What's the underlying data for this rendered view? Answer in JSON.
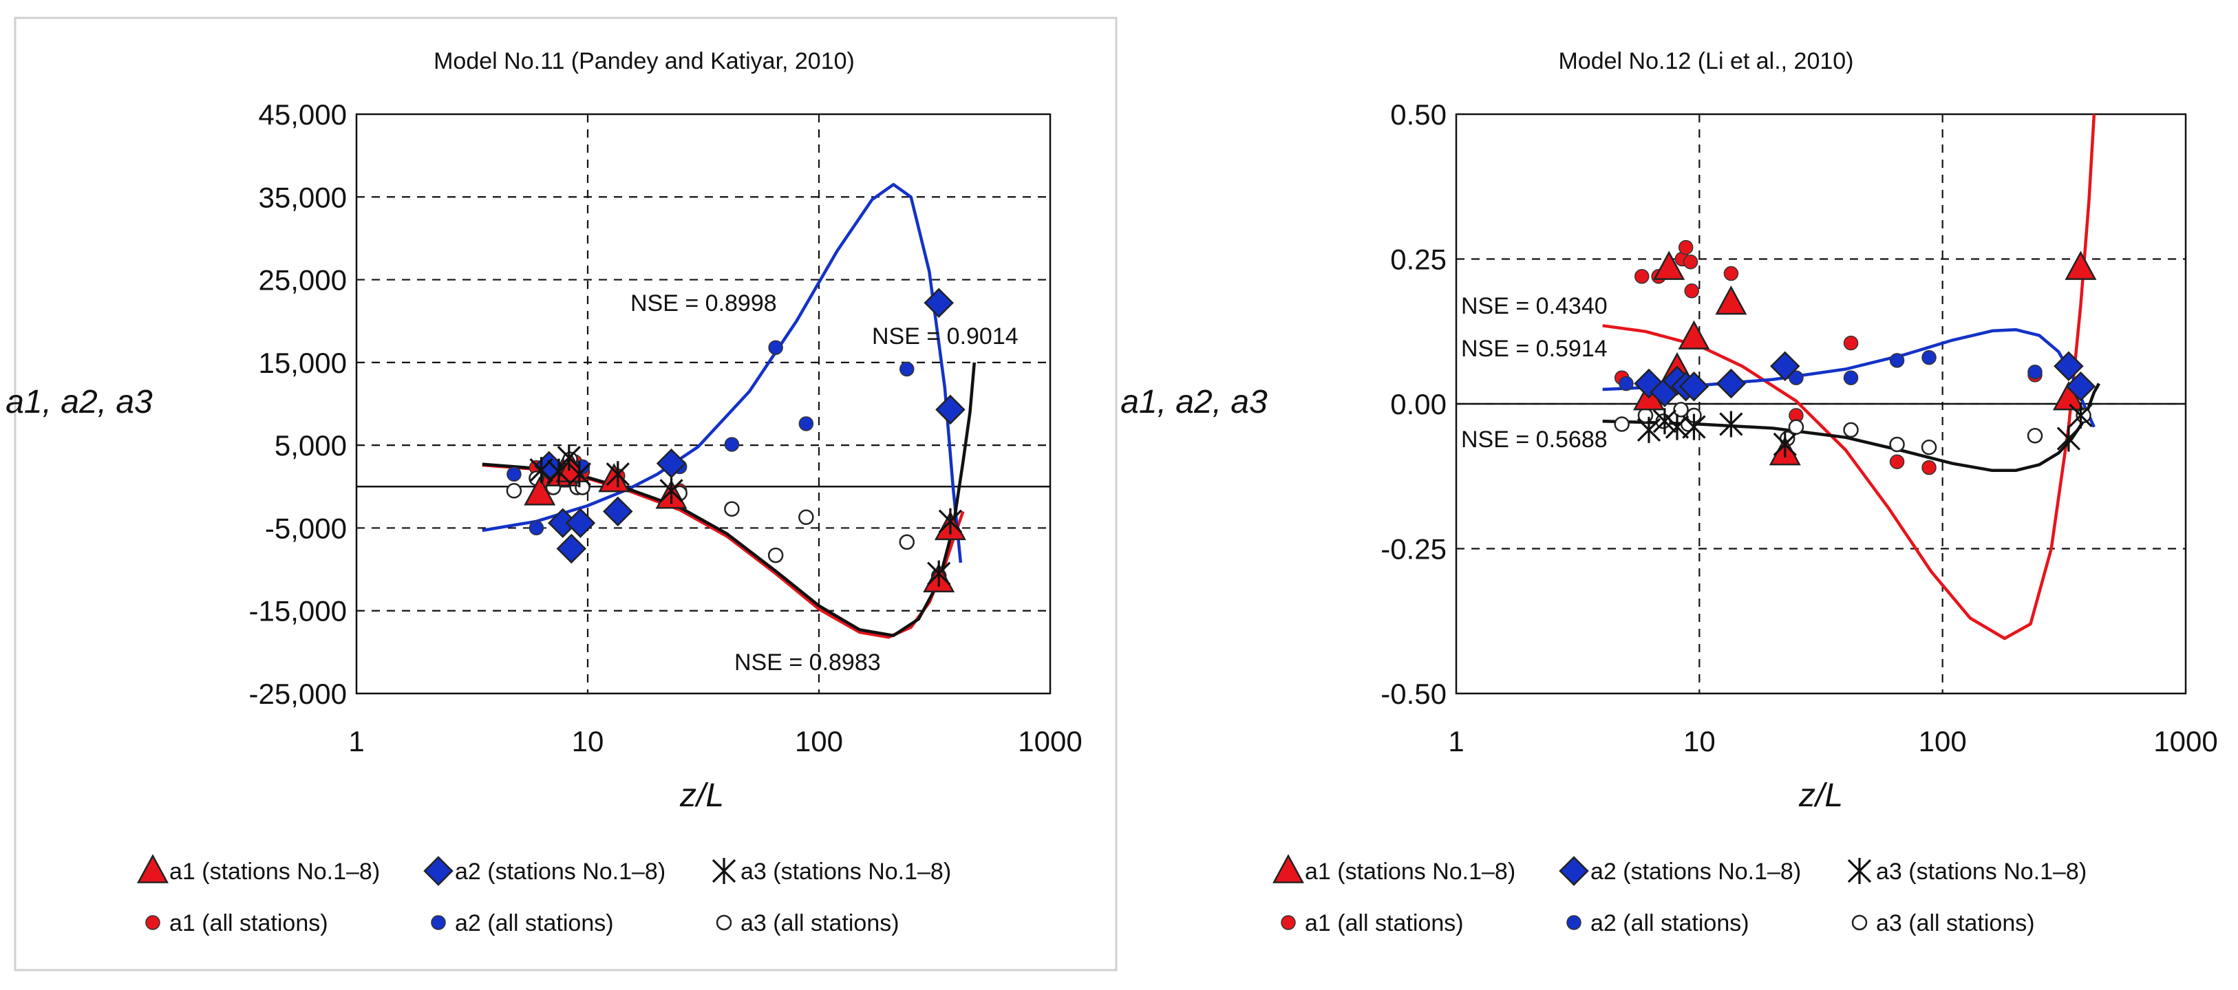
{
  "chart_data": [
    {
      "type": "scatter",
      "title": "Model No.11 (Pandey and Katiyar, 2010)",
      "xlabel": "z/L",
      "ylabel": "a1, a2, a3",
      "xscale": "log",
      "xlim": [
        1,
        1000
      ],
      "ylim": [
        -25000,
        45000
      ],
      "xticks": [
        1,
        10,
        100,
        1000
      ],
      "xtick_labels": [
        "1",
        "10",
        "100",
        "1000"
      ],
      "yticks": [
        -25000,
        -15000,
        -5000,
        5000,
        15000,
        25000,
        35000,
        45000
      ],
      "ytick_labels": [
        "-25,000",
        "-15,000",
        "-5,000",
        "5,000",
        "15,000",
        "25,000",
        "35,000",
        "45,000"
      ],
      "grid": "dashed",
      "legend_position": "bottom",
      "series": [
        {
          "name": "a1 (stations No.1–8)",
          "marker": "triangle",
          "color": "#e8141b",
          "points": [
            [
              6.2,
              -800
            ],
            [
              7.8,
              1500
            ],
            [
              8.5,
              2000
            ],
            [
              13,
              800
            ],
            [
              23,
              -1200
            ],
            [
              330,
              -11300
            ],
            [
              370,
              -5000
            ]
          ]
        },
        {
          "name": "a2 (stations No.1–8)",
          "marker": "diamond",
          "color": "#1432c8",
          "points": [
            [
              6.8,
              2500
            ],
            [
              7.8,
              -4400
            ],
            [
              8.5,
              -7500
            ],
            [
              9.3,
              -4400
            ],
            [
              13.5,
              -3000
            ],
            [
              23,
              2800
            ],
            [
              330,
              22200
            ],
            [
              370,
              9300
            ]
          ]
        },
        {
          "name": "a3 (stations No.1–8)",
          "marker": "star",
          "color": "#111111",
          "points": [
            [
              6.3,
              2000
            ],
            [
              7.5,
              1800
            ],
            [
              8.3,
              3500
            ],
            [
              9.2,
              1500
            ],
            [
              13.5,
              1500
            ],
            [
              23,
              -500
            ],
            [
              330,
              -10500
            ],
            [
              370,
              -4200
            ]
          ]
        },
        {
          "name": "a1 (all stations)",
          "marker": "circle",
          "color": "#e8141b",
          "points": [
            [
              6,
              2300
            ],
            [
              6.8,
              600
            ],
            [
              8.1,
              2200
            ],
            [
              8.8,
              3000
            ],
            [
              9.5,
              1800
            ],
            [
              13.5,
              1300
            ],
            [
              23.5,
              -1500
            ],
            [
              25,
              -500
            ]
          ]
        },
        {
          "name": "a2 (all stations)",
          "marker": "circle",
          "color": "#1432c8",
          "points": [
            [
              4.8,
              1500
            ],
            [
              6,
              -5000
            ],
            [
              7.2,
              1800
            ],
            [
              8.5,
              2500
            ],
            [
              9.5,
              2400
            ],
            [
              25,
              2400
            ],
            [
              42,
              5100
            ],
            [
              65,
              16800
            ],
            [
              88,
              7600
            ],
            [
              240,
              14200
            ]
          ]
        },
        {
          "name": "a3 (all stations)",
          "marker": "ring",
          "color": "#111111",
          "points": [
            [
              4.8,
              -500
            ],
            [
              6,
              1000
            ],
            [
              7.1,
              -100
            ],
            [
              8.4,
              3300
            ],
            [
              9,
              -100
            ],
            [
              9.5,
              -100
            ],
            [
              25,
              -800
            ],
            [
              42,
              -2700
            ],
            [
              65,
              -8300
            ],
            [
              88,
              -3700
            ],
            [
              240,
              -6700
            ],
            [
              330,
              -10800
            ]
          ]
        }
      ],
      "fit_curves": [
        {
          "name": "a1 fit",
          "color": "#e8141b",
          "nse_label": "NSE = 0.8983",
          "points": [
            [
              3.5,
              2600
            ],
            [
              6,
              2100
            ],
            [
              10,
              1000
            ],
            [
              15,
              -500
            ],
            [
              25,
              -2800
            ],
            [
              40,
              -6000
            ],
            [
              65,
              -10500
            ],
            [
              100,
              -14800
            ],
            [
              150,
              -17600
            ],
            [
              200,
              -18200
            ],
            [
              250,
              -17000
            ],
            [
              300,
              -14000
            ],
            [
              350,
              -9500
            ],
            [
              380,
              -6500
            ],
            [
              420,
              -3000
            ]
          ]
        },
        {
          "name": "a2 fit",
          "color": "#1432c8",
          "nse_label": "NSE = 0.8998",
          "points": [
            [
              3.5,
              -5300
            ],
            [
              6,
              -4200
            ],
            [
              10,
              -2300
            ],
            [
              15,
              -300
            ],
            [
              20,
              1500
            ],
            [
              30,
              4800
            ],
            [
              50,
              11500
            ],
            [
              80,
              20000
            ],
            [
              120,
              28500
            ],
            [
              170,
              34700
            ],
            [
              210,
              36500
            ],
            [
              250,
              35000
            ],
            [
              300,
              26000
            ],
            [
              350,
              12000
            ],
            [
              380,
              0
            ],
            [
              410,
              -9200
            ]
          ]
        },
        {
          "name": "a3 fit",
          "color": "#111111",
          "nse_label": "NSE = 0.9014",
          "points": [
            [
              3.5,
              2700
            ],
            [
              6,
              2200
            ],
            [
              10,
              1100
            ],
            [
              15,
              -300
            ],
            [
              25,
              -2500
            ],
            [
              40,
              -5700
            ],
            [
              65,
              -10200
            ],
            [
              100,
              -14400
            ],
            [
              150,
              -17300
            ],
            [
              210,
              -18000
            ],
            [
              270,
              -16000
            ],
            [
              330,
              -11500
            ],
            [
              380,
              -5000
            ],
            [
              420,
              3000
            ],
            [
              450,
              9000
            ],
            [
              470,
              15000
            ]
          ]
        }
      ],
      "zero_line": 0
    },
    {
      "type": "scatter",
      "title": "Model No.12 (Li et al., 2010)",
      "xlabel": "z/L",
      "ylabel": "a1, a2, a3",
      "xscale": "log",
      "xlim": [
        1,
        1000
      ],
      "ylim": [
        -0.5,
        0.5
      ],
      "xticks": [
        1,
        10,
        100,
        1000
      ],
      "xtick_labels": [
        "1",
        "10",
        "100",
        "1000"
      ],
      "yticks": [
        -0.5,
        -0.25,
        0,
        0.25,
        0.5
      ],
      "ytick_labels": [
        "-0.50",
        "-0.25",
        "0.00",
        "0.25",
        "0.50"
      ],
      "grid": "dashed",
      "legend_position": "bottom",
      "series": [
        {
          "name": "a1 (stations No.1–8)",
          "marker": "triangle",
          "color": "#e8141b",
          "points": [
            [
              6.2,
              0.01
            ],
            [
              7.5,
              0.235
            ],
            [
              8.1,
              0.06
            ],
            [
              9.5,
              0.115
            ],
            [
              13.5,
              0.175
            ],
            [
              22.5,
              -0.085
            ],
            [
              330,
              0.01
            ],
            [
              370,
              0.235
            ]
          ]
        },
        {
          "name": "a2 (stations No.1–8)",
          "marker": "diamond",
          "color": "#1432c8",
          "points": [
            [
              6.2,
              0.035
            ],
            [
              7.2,
              0.02
            ],
            [
              8.1,
              0.04
            ],
            [
              8.8,
              0.03
            ],
            [
              9.5,
              0.03
            ],
            [
              13.5,
              0.035
            ],
            [
              22.5,
              0.065
            ],
            [
              330,
              0.065
            ],
            [
              370,
              0.03
            ]
          ]
        },
        {
          "name": "a3 (stations No.1–8)",
          "marker": "star",
          "color": "#111111",
          "points": [
            [
              6.2,
              -0.045
            ],
            [
              7.2,
              -0.03
            ],
            [
              8.1,
              -0.04
            ],
            [
              9.5,
              -0.04
            ],
            [
              13.5,
              -0.035
            ],
            [
              22.5,
              -0.07
            ],
            [
              330,
              -0.06
            ],
            [
              370,
              -0.02
            ]
          ]
        },
        {
          "name": "a1 (all stations)",
          "marker": "circle",
          "color": "#e8141b",
          "points": [
            [
              4.8,
              0.045
            ],
            [
              5.8,
              0.22
            ],
            [
              6.8,
              0.22
            ],
            [
              8.5,
              0.25
            ],
            [
              8.8,
              0.27
            ],
            [
              9.2,
              0.245
            ],
            [
              9.3,
              0.195
            ],
            [
              13.5,
              0.225
            ],
            [
              25,
              -0.02
            ],
            [
              42,
              0.105
            ],
            [
              65,
              -0.1
            ],
            [
              88,
              -0.11
            ],
            [
              240,
              0.05
            ]
          ]
        },
        {
          "name": "a2 (all stations)",
          "marker": "circle",
          "color": "#1432c8",
          "points": [
            [
              5,
              0.035
            ],
            [
              6.3,
              0.02
            ],
            [
              7.5,
              0.02
            ],
            [
              9,
              0.03
            ],
            [
              25,
              0.045
            ],
            [
              42,
              0.045
            ],
            [
              65,
              0.075
            ],
            [
              88,
              0.08
            ],
            [
              240,
              0.055
            ]
          ]
        },
        {
          "name": "a3 (all stations)",
          "marker": "ring",
          "color": "#111111",
          "points": [
            [
              4.8,
              -0.035
            ],
            [
              6,
              -0.02
            ],
            [
              7.1,
              -0.03
            ],
            [
              8.4,
              -0.01
            ],
            [
              9,
              -0.035
            ],
            [
              9.5,
              -0.02
            ],
            [
              23,
              -0.06
            ],
            [
              25,
              -0.04
            ],
            [
              42,
              -0.045
            ],
            [
              65,
              -0.07
            ],
            [
              88,
              -0.075
            ],
            [
              240,
              -0.055
            ],
            [
              380,
              -0.02
            ]
          ]
        }
      ],
      "fit_curves": [
        {
          "name": "a1 fit",
          "color": "#e8141b",
          "nse_label": "NSE = 0.4340",
          "points": [
            [
              4,
              0.135
            ],
            [
              6,
              0.125
            ],
            [
              10,
              0.1
            ],
            [
              15,
              0.065
            ],
            [
              25,
              0.005
            ],
            [
              40,
              -0.08
            ],
            [
              60,
              -0.18
            ],
            [
              90,
              -0.29
            ],
            [
              130,
              -0.37
            ],
            [
              180,
              -0.405
            ],
            [
              230,
              -0.38
            ],
            [
              280,
              -0.25
            ],
            [
              330,
              -0.04
            ],
            [
              370,
              0.17
            ],
            [
              400,
              0.35
            ],
            [
              420,
              0.5
            ]
          ]
        },
        {
          "name": "a2 fit",
          "color": "#1432c8",
          "nse_label": "NSE = 0.5914",
          "points": [
            [
              4,
              0.025
            ],
            [
              6,
              0.028
            ],
            [
              10,
              0.032
            ],
            [
              20,
              0.042
            ],
            [
              40,
              0.06
            ],
            [
              70,
              0.085
            ],
            [
              110,
              0.11
            ],
            [
              160,
              0.126
            ],
            [
              200,
              0.128
            ],
            [
              250,
              0.118
            ],
            [
              300,
              0.09
            ],
            [
              340,
              0.05
            ],
            [
              380,
              0.0
            ],
            [
              420,
              -0.04
            ]
          ]
        },
        {
          "name": "a3 fit",
          "color": "#111111",
          "nse_label": "NSE = 0.5688",
          "points": [
            [
              4,
              -0.03
            ],
            [
              6,
              -0.032
            ],
            [
              10,
              -0.035
            ],
            [
              20,
              -0.042
            ],
            [
              40,
              -0.058
            ],
            [
              70,
              -0.082
            ],
            [
              110,
              -0.103
            ],
            [
              160,
              -0.115
            ],
            [
              200,
              -0.115
            ],
            [
              250,
              -0.105
            ],
            [
              300,
              -0.085
            ],
            [
              340,
              -0.06
            ],
            [
              380,
              -0.03
            ],
            [
              420,
              0.02
            ],
            [
              440,
              0.035
            ]
          ]
        }
      ],
      "zero_line": 0
    }
  ],
  "legend_labels": [
    "a1 (stations No.1–8)",
    "a2 (stations No.1–8)",
    "a3 (stations No.1–8)",
    "a1 (all stations)",
    "a2 (all stations)",
    "a3 (all stations)"
  ]
}
